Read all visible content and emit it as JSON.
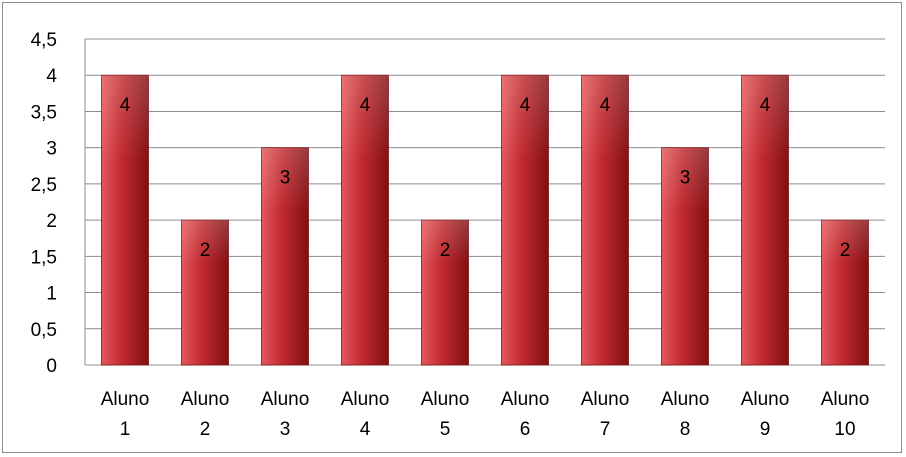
{
  "chart_data": {
    "type": "bar",
    "categories": [
      [
        "Aluno",
        "1"
      ],
      [
        "Aluno",
        "2"
      ],
      [
        "Aluno",
        "3"
      ],
      [
        "Aluno",
        "4"
      ],
      [
        "Aluno",
        "5"
      ],
      [
        "Aluno",
        "6"
      ],
      [
        "Aluno",
        "7"
      ],
      [
        "Aluno",
        "8"
      ],
      [
        "Aluno",
        "9"
      ],
      [
        "Aluno",
        "10"
      ]
    ],
    "values": [
      4,
      2,
      3,
      4,
      2,
      4,
      4,
      3,
      4,
      2
    ],
    "data_labels": [
      "4",
      "2",
      "3",
      "4",
      "2",
      "4",
      "4",
      "3",
      "4",
      "2"
    ],
    "y_ticks": [
      "0",
      "0,5",
      "1",
      "1,5",
      "2",
      "2,5",
      "3",
      "3,5",
      "4",
      "4,5"
    ],
    "ylim": [
      0,
      4.5
    ],
    "y_step": 0.5,
    "grid": true,
    "legend": "none",
    "colors": {
      "bar_light": "#e2585c",
      "bar_mid": "#c0282d",
      "bar_dark": "#7f1114",
      "grid": "#8c8c8c"
    }
  }
}
